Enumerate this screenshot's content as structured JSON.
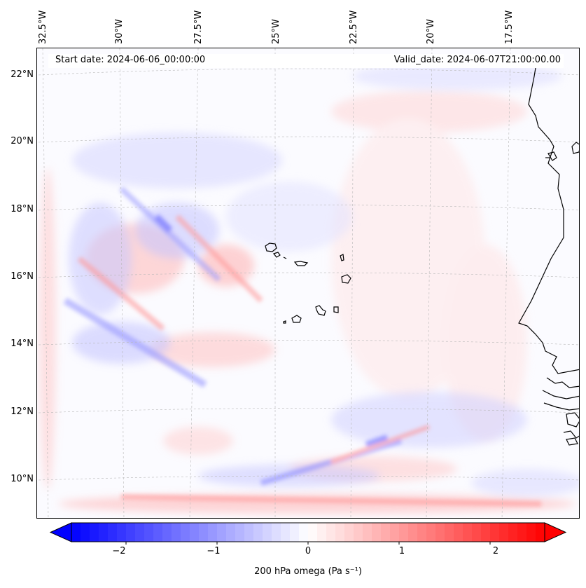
{
  "map": {
    "lon_labels": [
      "32.5°W",
      "30°W",
      "27.5°W",
      "25°W",
      "22.5°W",
      "20°W",
      "17.5°W"
    ],
    "lat_labels": [
      "22°N",
      "20°N",
      "18°N",
      "16°N",
      "14°N",
      "12°N",
      "10°N"
    ],
    "start_date": "Start date: 2024-06-06_00:00:00",
    "valid_date": "Valid_date: 2024-06-07T21:00:00.00"
  },
  "colorbar": {
    "label": "200 hPa omega (Pa s⁻¹)",
    "tick_labels": [
      "−2",
      "−1",
      "0",
      "1",
      "2"
    ],
    "tick_values": [
      -2,
      -1,
      0,
      1,
      2
    ],
    "range": [
      -2.6,
      2.6
    ],
    "colors": {
      "negative": "#0000ff",
      "zero": "#ffffff",
      "positive": "#ff0000"
    }
  }
}
